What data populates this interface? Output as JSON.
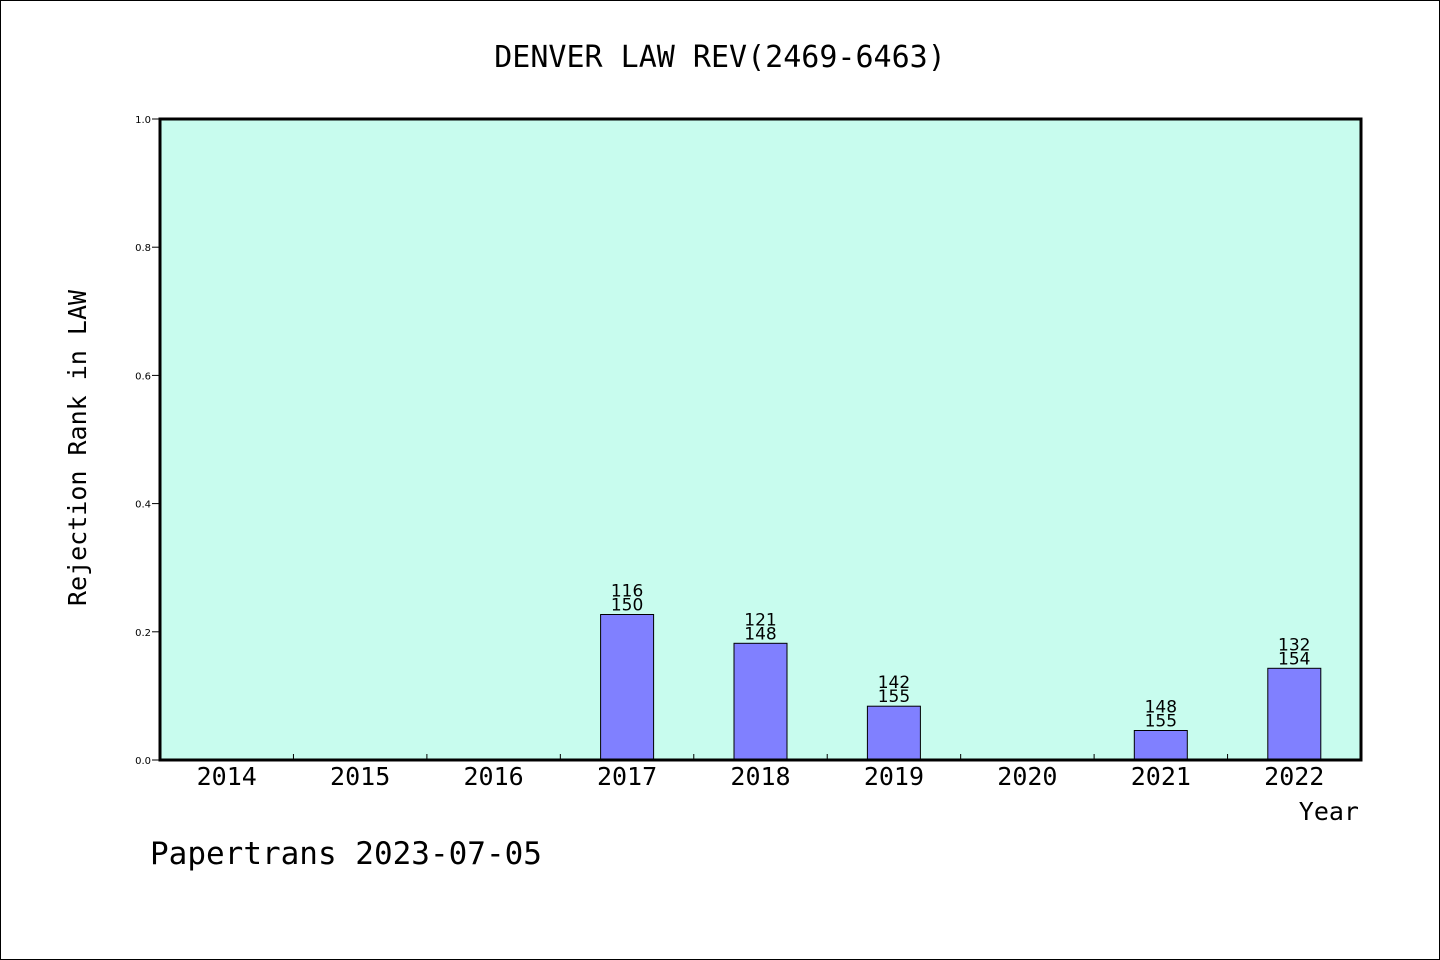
{
  "chart_data": {
    "type": "bar",
    "title": "DENVER LAW REV(2469-6463)",
    "xlabel": "Year",
    "ylabel": "Rejection Rank in LAW",
    "categories": [
      "2014",
      "2015",
      "2016",
      "2017",
      "2018",
      "2019",
      "2020",
      "2021",
      "2022"
    ],
    "values": [
      0,
      0,
      0,
      0.227,
      0.182,
      0.084,
      0,
      0.046,
      0.143
    ],
    "bar_labels": [
      [
        "",
        ""
      ],
      [
        "",
        ""
      ],
      [
        "",
        ""
      ],
      [
        "116",
        "150"
      ],
      [
        "121",
        "148"
      ],
      [
        "142",
        "155"
      ],
      [
        "",
        ""
      ],
      [
        "148",
        "155"
      ],
      [
        "132",
        "154"
      ]
    ],
    "ylim": [
      0,
      1.0
    ],
    "yticks": [
      "0.0",
      "0.2",
      "0.4",
      "0.6",
      "0.8",
      "1.0"
    ],
    "grid": false,
    "legend": "none",
    "colors": {
      "plot_background": "#c8fcee",
      "bar_fill": "#8080ff",
      "bar_stroke": "#000000",
      "axis": "#000000"
    }
  },
  "footer": {
    "watermark": "Papertrans 2023-07-05"
  }
}
